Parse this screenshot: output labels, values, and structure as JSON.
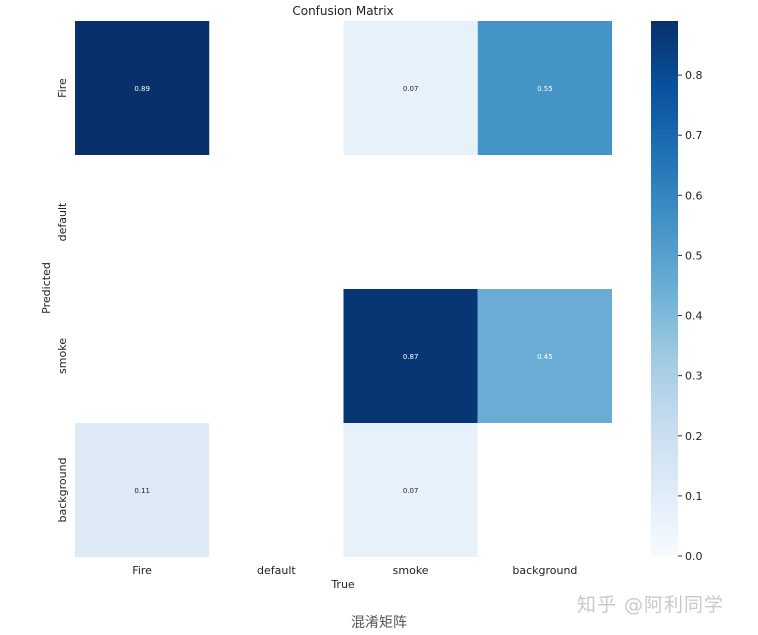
{
  "chart_data": {
    "type": "heatmap",
    "title": "Confusion Matrix",
    "xlabel": "True",
    "ylabel": "Predicted",
    "x_categories": [
      "Fire",
      "default",
      "smoke",
      "background"
    ],
    "y_categories": [
      "Fire",
      "default",
      "smoke",
      "background"
    ],
    "cells": [
      {
        "row": "Fire",
        "col": "Fire",
        "value": 0.89
      },
      {
        "row": "Fire",
        "col": "smoke",
        "value": 0.07
      },
      {
        "row": "Fire",
        "col": "background",
        "value": 0.55
      },
      {
        "row": "smoke",
        "col": "smoke",
        "value": 0.87
      },
      {
        "row": "smoke",
        "col": "background",
        "value": 0.45
      },
      {
        "row": "background",
        "col": "Fire",
        "value": 0.11
      },
      {
        "row": "background",
        "col": "smoke",
        "value": 0.07
      }
    ],
    "colorbar": {
      "range": [
        0.0,
        0.89
      ],
      "ticks": [
        "0.0",
        "0.1",
        "0.2",
        "0.3",
        "0.4",
        "0.5",
        "0.6",
        "0.7",
        "0.8"
      ],
      "colormap": "Blues"
    }
  },
  "caption": "混淆矩阵",
  "watermark": "知乎 @阿利同学"
}
